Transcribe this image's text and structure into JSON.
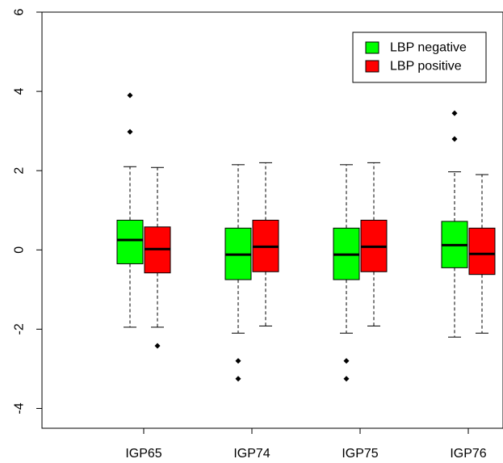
{
  "chart_data": {
    "type": "boxplot",
    "title": "",
    "xlabel": "",
    "ylabel": "",
    "ylim": [
      -4.5,
      6
    ],
    "yticks": [
      -4,
      -2,
      0,
      2,
      4,
      6
    ],
    "ytick_labels": [
      "-4",
      "-2",
      "0",
      "2",
      "4",
      "6"
    ],
    "categories": [
      "IGP65",
      "IGP74",
      "IGP75",
      "IGP76"
    ],
    "grid": false,
    "legend_position": "top-right",
    "series": [
      {
        "name": "LBP negative",
        "color": "#00ff00",
        "boxes": [
          {
            "category": "IGP65",
            "whisker_low": -1.95,
            "q1": -0.35,
            "median": 0.25,
            "q3": 0.75,
            "whisker_high": 2.1,
            "outliers": [
              3.9,
              2.98
            ]
          },
          {
            "category": "IGP74",
            "whisker_low": -2.1,
            "q1": -0.75,
            "median": -0.12,
            "q3": 0.55,
            "whisker_high": 2.15,
            "outliers": [
              -2.8,
              -3.25
            ]
          },
          {
            "category": "IGP75",
            "whisker_low": -2.1,
            "q1": -0.75,
            "median": -0.12,
            "q3": 0.55,
            "whisker_high": 2.15,
            "outliers": [
              -2.8,
              -3.25
            ]
          },
          {
            "category": "IGP76",
            "whisker_low": -2.2,
            "q1": -0.45,
            "median": 0.12,
            "q3": 0.72,
            "whisker_high": 1.97,
            "outliers": [
              3.45,
              2.8
            ]
          }
        ]
      },
      {
        "name": "LBP positive",
        "color": "#ff0000",
        "boxes": [
          {
            "category": "IGP65",
            "whisker_low": -1.95,
            "q1": -0.58,
            "median": 0.02,
            "q3": 0.58,
            "whisker_high": 2.08,
            "outliers": [
              -2.42
            ]
          },
          {
            "category": "IGP74",
            "whisker_low": -1.92,
            "q1": -0.55,
            "median": 0.08,
            "q3": 0.75,
            "whisker_high": 2.2,
            "outliers": []
          },
          {
            "category": "IGP75",
            "whisker_low": -1.92,
            "q1": -0.55,
            "median": 0.08,
            "q3": 0.75,
            "whisker_high": 2.2,
            "outliers": []
          },
          {
            "category": "IGP76",
            "whisker_low": -2.1,
            "q1": -0.62,
            "median": -0.1,
            "q3": 0.55,
            "whisker_high": 1.9,
            "outliers": []
          }
        ]
      }
    ]
  }
}
